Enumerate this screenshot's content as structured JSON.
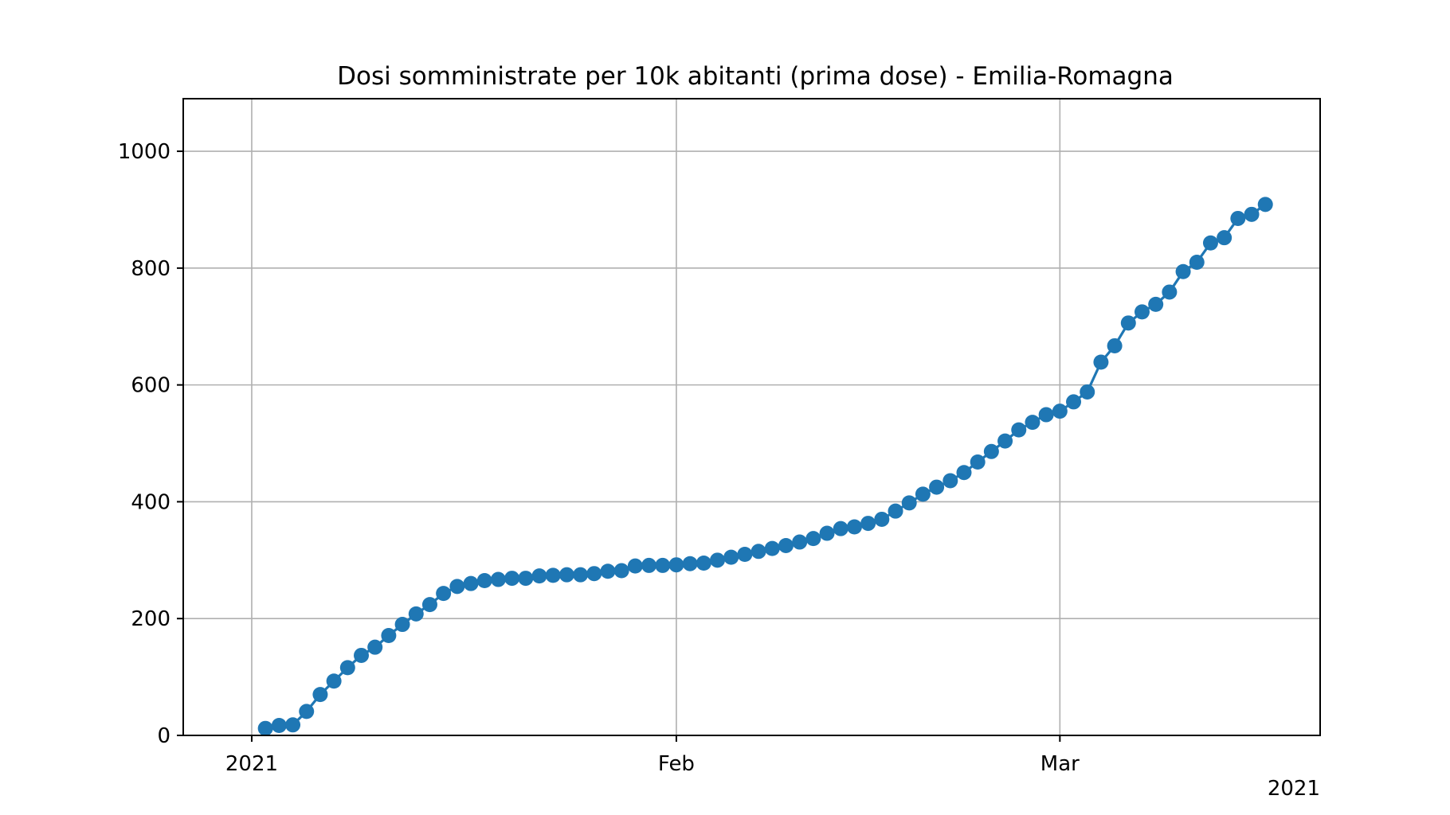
{
  "chart_data": {
    "type": "line",
    "title": "Dosi somministrate per 10k abitanti (prima dose) - Emilia-Romagna",
    "xlabel": "",
    "ylabel": "",
    "x_start": "2020-12-27",
    "x_end": "2021-03-20",
    "ylim": [
      0,
      1090
    ],
    "grid": true,
    "color": "#1f77b4",
    "y_ticks": [
      0,
      200,
      400,
      600,
      800,
      1000
    ],
    "x_ticks": [
      {
        "date": "2021-01-01",
        "label": "2021"
      },
      {
        "date": "2021-02-01",
        "label": "Feb"
      },
      {
        "date": "2021-03-01",
        "label": "Mar"
      }
    ],
    "x_offset_label": "2021",
    "series": [
      {
        "x": [
          "2021-01-02",
          "2021-01-03",
          "2021-01-04",
          "2021-01-05",
          "2021-01-06",
          "2021-01-07",
          "2021-01-08",
          "2021-01-09",
          "2021-01-10",
          "2021-01-11",
          "2021-01-12",
          "2021-01-13",
          "2021-01-14",
          "2021-01-15",
          "2021-01-16",
          "2021-01-17",
          "2021-01-18",
          "2021-01-19",
          "2021-01-20",
          "2021-01-21",
          "2021-01-22",
          "2021-01-23",
          "2021-01-24",
          "2021-01-25",
          "2021-01-26",
          "2021-01-27",
          "2021-01-28",
          "2021-01-29",
          "2021-01-30",
          "2021-01-31",
          "2021-02-01",
          "2021-02-02",
          "2021-02-03",
          "2021-02-04",
          "2021-02-05",
          "2021-02-06",
          "2021-02-07",
          "2021-02-08",
          "2021-02-09",
          "2021-02-10",
          "2021-02-11",
          "2021-02-12",
          "2021-02-13",
          "2021-02-14",
          "2021-02-15",
          "2021-02-16",
          "2021-02-17",
          "2021-02-18",
          "2021-02-19",
          "2021-02-20",
          "2021-02-21",
          "2021-02-22",
          "2021-02-23",
          "2021-02-24",
          "2021-02-25",
          "2021-02-26",
          "2021-02-27",
          "2021-02-28",
          "2021-03-01",
          "2021-03-02",
          "2021-03-03",
          "2021-03-04",
          "2021-03-05",
          "2021-03-06",
          "2021-03-07",
          "2021-03-08",
          "2021-03-09",
          "2021-03-10",
          "2021-03-11",
          "2021-03-12",
          "2021-03-13",
          "2021-03-14",
          "2021-03-15",
          "2021-03-16"
        ],
        "values": [
          12,
          17,
          18,
          41,
          70,
          93,
          116,
          137,
          151,
          171,
          190,
          208,
          224,
          243,
          255,
          260,
          265,
          267,
          269,
          269,
          273,
          274,
          275,
          275,
          277,
          281,
          282,
          290,
          291,
          291,
          292,
          294,
          295,
          300,
          305,
          310,
          315,
          320,
          325,
          331,
          337,
          346,
          354,
          357,
          363,
          370,
          384,
          398,
          413,
          425,
          436,
          450,
          468,
          486,
          504,
          523,
          536,
          549,
          555,
          571,
          588,
          639,
          667,
          706,
          725,
          738,
          759,
          794,
          810,
          843,
          852,
          885,
          892,
          909
        ]
      }
    ]
  }
}
